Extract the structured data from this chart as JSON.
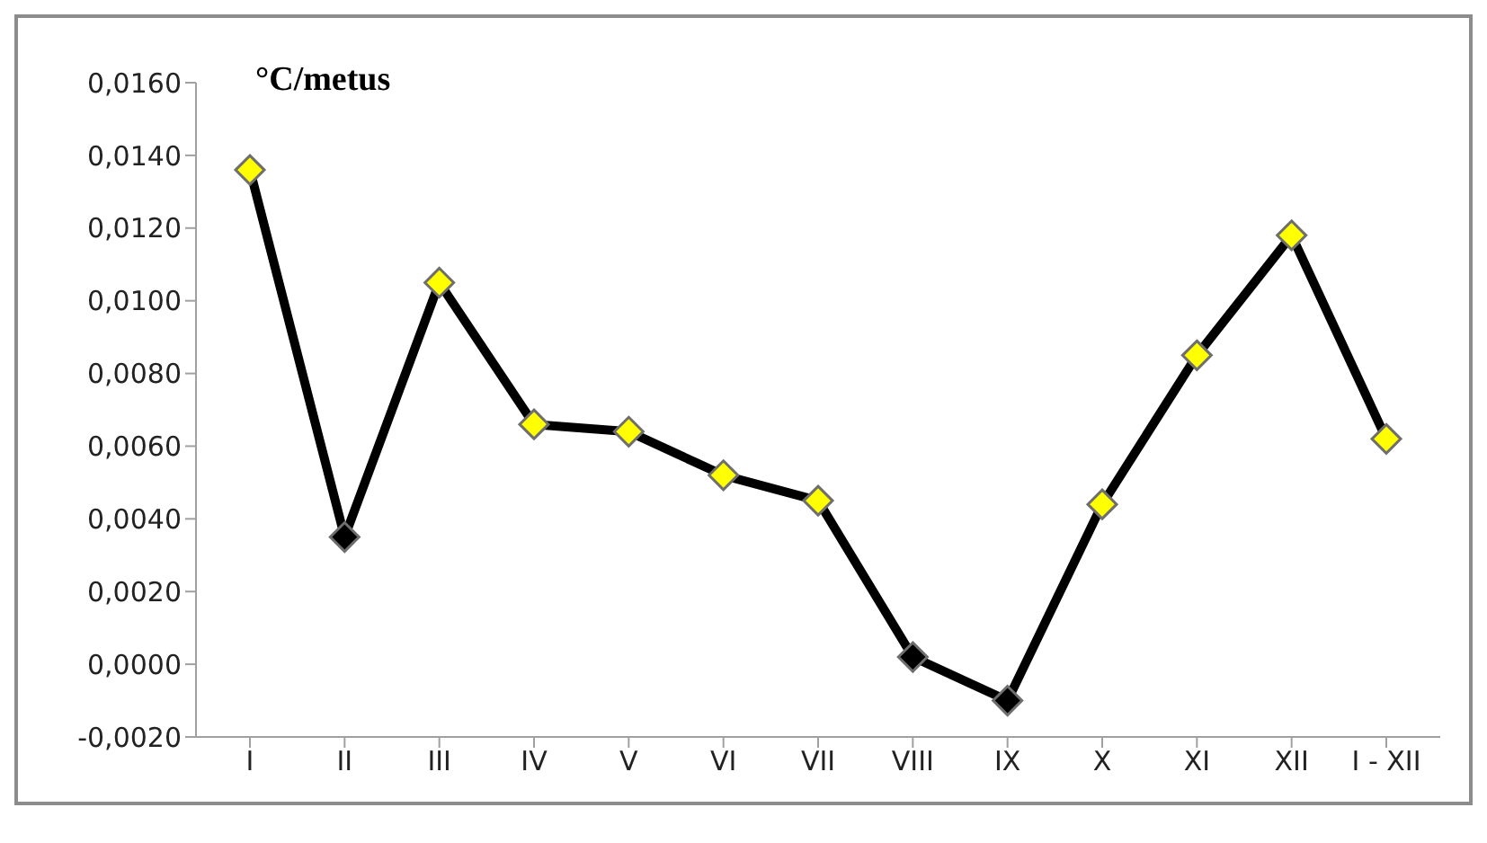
{
  "chart_data": {
    "type": "line",
    "ylabel": "°C/metus",
    "categories": [
      "I",
      "II",
      "III",
      "IV",
      "V",
      "VI",
      "VII",
      "VIII",
      "IX",
      "X",
      "XI",
      "XII",
      "I - XII"
    ],
    "series": [
      {
        "color": "#000000",
        "colors": [
          "#ffff00",
          "#000000",
          "#ffff00",
          "#ffff00",
          "#ffff00",
          "#ffff00",
          "#ffff00",
          "#000000",
          "#000000",
          "#ffff00",
          "#ffff00",
          "#ffff00",
          "#ffff00"
        ],
        "values": [
          0.0136,
          0.0035,
          0.0105,
          0.0066,
          0.0064,
          0.0052,
          0.0045,
          0.0002,
          -0.001,
          0.0044,
          0.0085,
          0.0118,
          0.0062
        ]
      }
    ],
    "ylim": [
      -0.002,
      0.016
    ],
    "yticks": [
      {
        "value": -0.002,
        "label": "-0,0020"
      },
      {
        "value": 0,
        "label": "0,0000"
      },
      {
        "value": 0.002,
        "label": "0,0020"
      },
      {
        "value": 0.004,
        "label": "0,0040"
      },
      {
        "value": 0.006,
        "label": "0,0060"
      },
      {
        "value": 0.008,
        "label": "0,0080"
      },
      {
        "value": 0.01,
        "label": "0,0100"
      },
      {
        "value": 0.012,
        "label": "0,0120"
      },
      {
        "value": 0.014,
        "label": "0,0140"
      },
      {
        "value": 0.016,
        "label": "0,0160"
      }
    ],
    "grid": false,
    "legend": false,
    "marker": "diamond",
    "line_style": "solid"
  }
}
